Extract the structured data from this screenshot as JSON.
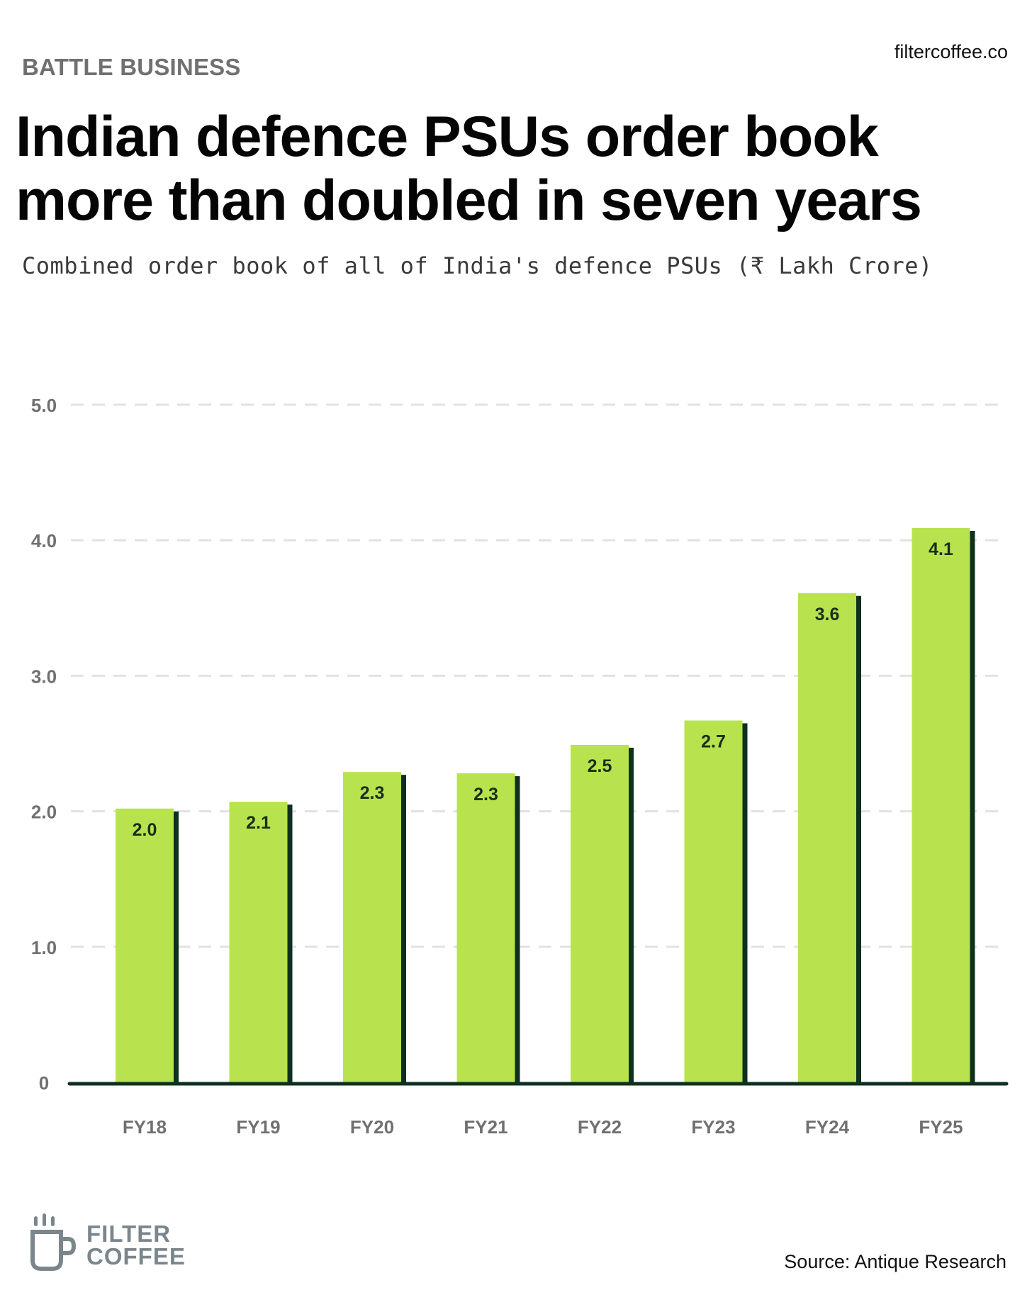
{
  "header": {
    "kicker": "BATTLE BUSINESS",
    "site": "filtercoffee.co",
    "title": "Indian defence PSUs order book more than doubled in seven years",
    "subtitle": "Combined order book of all of India's defence PSUs (₹ Lakh Crore)"
  },
  "chart_data": {
    "type": "bar",
    "categories": [
      "FY18",
      "FY19",
      "FY20",
      "FY21",
      "FY22",
      "FY23",
      "FY24",
      "FY25"
    ],
    "values": [
      2.02,
      2.07,
      2.29,
      2.28,
      2.49,
      2.67,
      3.61,
      4.09
    ],
    "data_labels": [
      "2.0",
      "2.1",
      "2.3",
      "2.3",
      "2.5",
      "2.7",
      "3.6",
      "4.1"
    ],
    "y_ticks": [
      0,
      1,
      2,
      3,
      4,
      5
    ],
    "y_tick_labels": [
      "0",
      "1.0",
      "2.0",
      "3.0",
      "4.0",
      "5.0"
    ],
    "ylim": [
      0,
      5
    ],
    "grid": true,
    "colors": {
      "bar": "#b8e34e",
      "shadow": "#0f3020",
      "baseline": "#0f3020",
      "grid": "#e2e2e2"
    }
  },
  "footer": {
    "source": "Source: Antique Research",
    "logo_line1": "FILTER",
    "logo_line2": "COFFEE"
  }
}
